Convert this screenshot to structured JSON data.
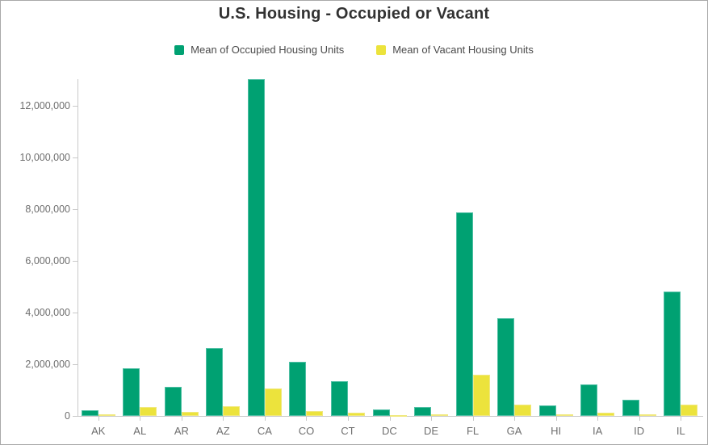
{
  "title": "U.S. Housing - Occupied or Vacant",
  "legend": [
    {
      "label": "Mean of Occupied Housing Units",
      "color": "#00a172"
    },
    {
      "label": "Mean of Vacant Housing Units",
      "color": "#ece33c"
    }
  ],
  "colors": {
    "occupied_fill": "#00a172",
    "occupied_border": "#4fbfa4",
    "vacant_fill": "#ece33c",
    "vacant_border": "#f0e87e",
    "axis": "#c9c9c9",
    "tick_text": "#6e6e6e",
    "title_text": "#323232",
    "legend_text": "#4a4a4a"
  },
  "chart_data": {
    "type": "bar",
    "title": "U.S. Housing - Occupied or Vacant",
    "xlabel": "",
    "ylabel": "",
    "categories": [
      "AK",
      "AL",
      "AR",
      "AZ",
      "CA",
      "CO",
      "CT",
      "DC",
      "DE",
      "FL",
      "GA",
      "HI",
      "IA",
      "ID",
      "IL"
    ],
    "series": [
      {
        "name": "Mean of Occupied Housing Units",
        "color": "#00a172",
        "values": [
          230000,
          1850000,
          1130000,
          2620000,
          13030000,
          2080000,
          1330000,
          250000,
          340000,
          7880000,
          3780000,
          420000,
          1230000,
          630000,
          4820000
        ]
      },
      {
        "name": "Mean of Vacant Housing Units",
        "color": "#ece33c",
        "values": [
          50000,
          350000,
          170000,
          360000,
          1060000,
          180000,
          120000,
          30000,
          60000,
          1580000,
          450000,
          70000,
          130000,
          60000,
          450000
        ]
      }
    ],
    "ylim": [
      0,
      13030000
    ],
    "yticks": [
      0,
      2000000,
      4000000,
      6000000,
      8000000,
      10000000,
      12000000
    ],
    "grid": false,
    "legend_position": "top-center"
  }
}
